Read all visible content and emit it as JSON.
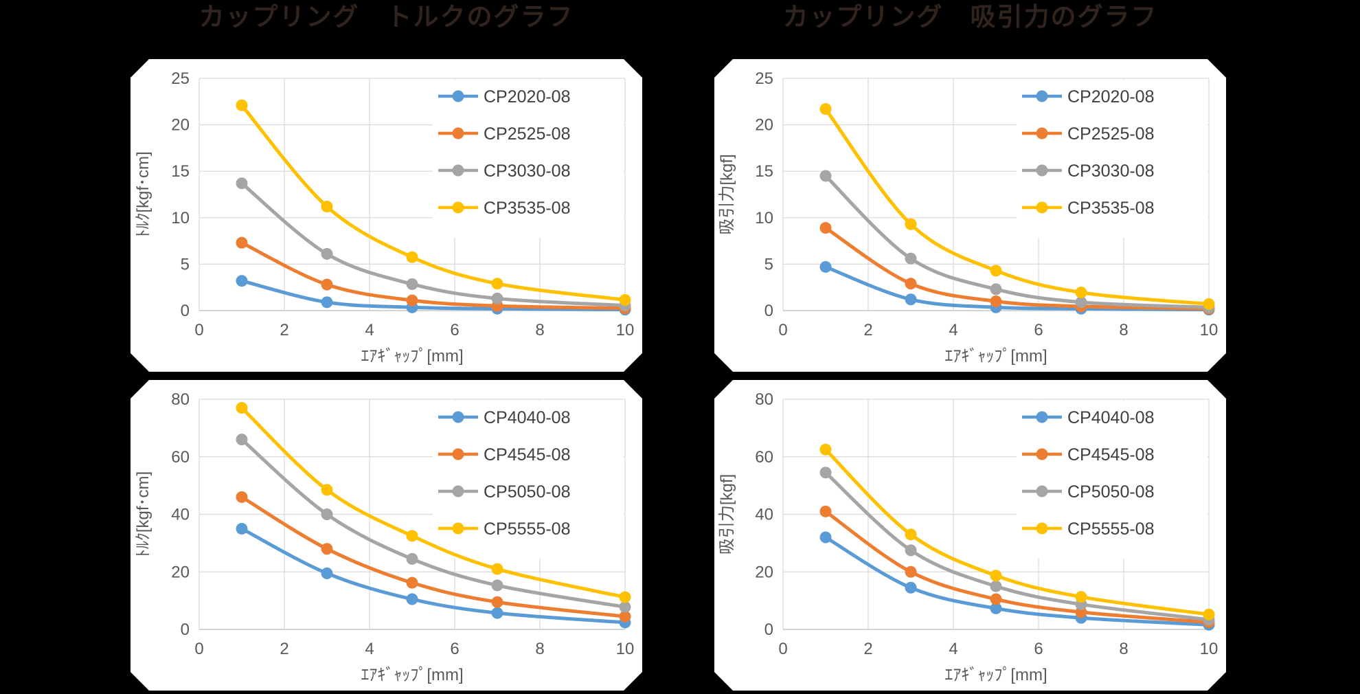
{
  "page": {
    "background": "#000000",
    "card_background": "#ffffff",
    "title_color": "#31241e",
    "grid_color": "#d9d9d9",
    "axis_line_color": "#c6c6c6",
    "tick_label_color": "#595959",
    "legend_label_color": "#404040"
  },
  "titles": {
    "left": "カップリング　トルクのグラフ",
    "right": "カップリング　吸引力のグラフ"
  },
  "series_colors": {
    "blue": "#5B9BD5",
    "orange": "#ED7D31",
    "gray": "#A5A5A5",
    "yellow": "#FFC000"
  },
  "chart_data": [
    {
      "type": "line",
      "title": "カップリング　トルクのグラフ",
      "xlabel": "ｴｱｷﾞｬｯﾌﾟ[mm]",
      "ylabel": "ﾄﾙｸ[kgf･cm]",
      "x": [
        1,
        3,
        5,
        7,
        10
      ],
      "xlim": [
        0,
        10
      ],
      "xticks": [
        0,
        2,
        4,
        6,
        8,
        10
      ],
      "ylim": [
        0,
        25
      ],
      "yticks": [
        0,
        5,
        10,
        15,
        20,
        25
      ],
      "grid": true,
      "legend_position": "top-right",
      "series": [
        {
          "name": "CP2020-08",
          "color": "#5B9BD5",
          "values": [
            3.2,
            0.9,
            0.35,
            0.2,
            0.1
          ]
        },
        {
          "name": "CP2525-08",
          "color": "#ED7D31",
          "values": [
            7.3,
            2.8,
            1.1,
            0.5,
            0.25
          ]
        },
        {
          "name": "CP3030-08",
          "color": "#A5A5A5",
          "values": [
            13.7,
            6.1,
            2.85,
            1.3,
            0.55
          ]
        },
        {
          "name": "CP3535-08",
          "color": "#FFC000",
          "values": [
            22.1,
            11.2,
            5.75,
            2.9,
            1.15
          ]
        }
      ]
    },
    {
      "type": "line",
      "title": "カップリング　吸引力のグラフ",
      "xlabel": "ｴｱｷﾞｬｯﾌﾟ[mm]",
      "ylabel": "吸引力[kgf]",
      "x": [
        1,
        3,
        5,
        7,
        10
      ],
      "xlim": [
        0,
        10
      ],
      "xticks": [
        0,
        2,
        4,
        6,
        8,
        10
      ],
      "ylim": [
        0,
        25
      ],
      "yticks": [
        0,
        5,
        10,
        15,
        20,
        25
      ],
      "grid": true,
      "legend_position": "top-right",
      "series": [
        {
          "name": "CP2020-08",
          "color": "#5B9BD5",
          "values": [
            4.7,
            1.2,
            0.35,
            0.2,
            0.1
          ]
        },
        {
          "name": "CP2525-08",
          "color": "#ED7D31",
          "values": [
            8.9,
            2.9,
            1.0,
            0.45,
            0.2
          ]
        },
        {
          "name": "CP3030-08",
          "color": "#A5A5A5",
          "values": [
            14.5,
            5.6,
            2.3,
            0.9,
            0.35
          ]
        },
        {
          "name": "CP3535-08",
          "color": "#FFC000",
          "values": [
            21.7,
            9.3,
            4.3,
            1.95,
            0.7
          ]
        }
      ]
    },
    {
      "type": "line",
      "title": "カップリング　トルクのグラフ",
      "xlabel": "ｴｱｷﾞｬｯﾌﾟ[mm]",
      "ylabel": "ﾄﾙｸ[kgf･cm]",
      "x": [
        1,
        3,
        5,
        7,
        10
      ],
      "xlim": [
        0,
        10
      ],
      "xticks": [
        0,
        2,
        4,
        6,
        8,
        10
      ],
      "ylim": [
        0,
        80
      ],
      "yticks": [
        0,
        20,
        40,
        60,
        80
      ],
      "grid": true,
      "legend_position": "top-right",
      "series": [
        {
          "name": "CP4040-08",
          "color": "#5B9BD5",
          "values": [
            35,
            19.5,
            10.5,
            5.7,
            2.4
          ]
        },
        {
          "name": "CP4545-08",
          "color": "#ED7D31",
          "values": [
            46,
            28,
            16.2,
            9.5,
            4.5
          ]
        },
        {
          "name": "CP5050-08",
          "color": "#A5A5A5",
          "values": [
            66,
            40,
            24.5,
            15.3,
            7.8
          ]
        },
        {
          "name": "CP5555-08",
          "color": "#FFC000",
          "values": [
            77,
            48.5,
            32.5,
            21,
            11.2
          ]
        }
      ]
    },
    {
      "type": "line",
      "title": "カップリング　吸引力のグラフ",
      "xlabel": "ｴｱｷﾞｬｯﾌﾟ[mm]",
      "ylabel": "吸引力[kgf]",
      "x": [
        1,
        3,
        5,
        7,
        10
      ],
      "xlim": [
        0,
        10
      ],
      "xticks": [
        0,
        2,
        4,
        6,
        8,
        10
      ],
      "ylim": [
        0,
        80
      ],
      "yticks": [
        0,
        20,
        40,
        60,
        80
      ],
      "grid": true,
      "legend_position": "top-right",
      "series": [
        {
          "name": "CP4040-08",
          "color": "#5B9BD5",
          "values": [
            32,
            14.5,
            7.3,
            4.0,
            1.6
          ]
        },
        {
          "name": "CP4545-08",
          "color": "#ED7D31",
          "values": [
            41,
            20,
            10.5,
            6.0,
            2.5
          ]
        },
        {
          "name": "CP5050-08",
          "color": "#A5A5A5",
          "values": [
            54.5,
            27.5,
            15,
            8.7,
            3.4
          ]
        },
        {
          "name": "CP5555-08",
          "color": "#FFC000",
          "values": [
            62.5,
            33,
            18.7,
            11.3,
            5.2
          ]
        }
      ]
    }
  ]
}
